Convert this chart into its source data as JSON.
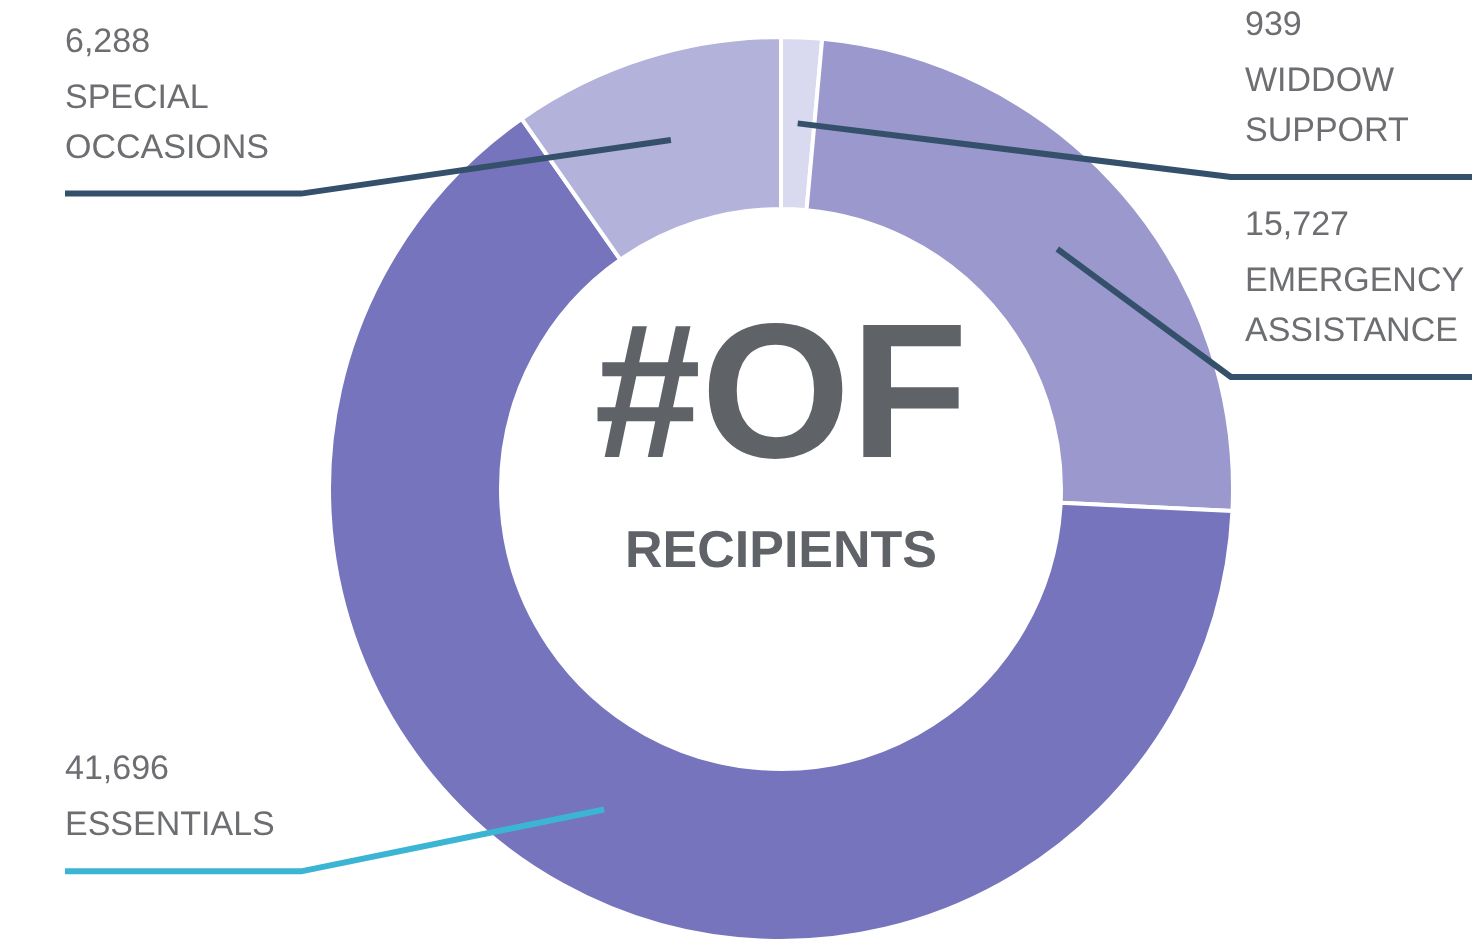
{
  "chart_data": {
    "type": "donut",
    "title": "#OF",
    "subtitle": "RECIPIENTS",
    "categories": [
      "WIDDOW SUPPORT",
      "EMERGENCY ASSISTANCE",
      "ESSENTIALS",
      "SPECIAL OCCASIONS"
    ],
    "values": [
      939,
      15727,
      41696,
      6288
    ],
    "colors": [
      "#d9d9ef",
      "#9a98cc",
      "#7674bd",
      "#b3b2db"
    ],
    "value_labels": [
      "939",
      "15,727",
      "41,696",
      "6,288"
    ]
  }
}
